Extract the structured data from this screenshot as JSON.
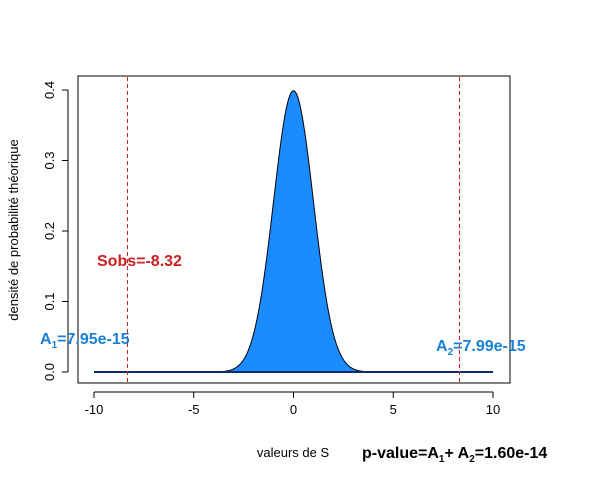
{
  "chart_data": {
    "type": "area",
    "distribution": "standard normal density",
    "xlabel": "valeurs de S",
    "ylabel": "densité de probabilité théorique",
    "xlim": [
      -10,
      10
    ],
    "ylim": [
      0,
      0.4
    ],
    "xticks": [
      -10,
      -5,
      0,
      5,
      10
    ],
    "yticks": [
      0.0,
      0.1,
      0.2,
      0.3,
      0.4
    ],
    "xtick_labels": [
      "-10",
      "-5",
      "0",
      "5",
      "10"
    ],
    "ytick_labels": [
      "0.0",
      "0.1",
      "0.2",
      "0.3",
      "0.4"
    ],
    "x": [
      -10,
      -4,
      -3.5,
      -3,
      -2.5,
      -2,
      -1.5,
      -1,
      -0.5,
      0,
      0.5,
      1,
      1.5,
      2,
      2.5,
      3,
      3.5,
      4,
      10
    ],
    "y": [
      0,
      0.0001,
      0.0009,
      0.0044,
      0.0175,
      0.054,
      0.1295,
      0.242,
      0.3521,
      0.3989,
      0.3521,
      0.242,
      0.1295,
      0.054,
      0.0175,
      0.0044,
      0.0009,
      0.0001,
      0
    ],
    "fill_color": "#1a8cff",
    "reference_lines": [
      {
        "x": -8.32,
        "color": "#cc1f1f",
        "style": "dashed"
      },
      {
        "x": 8.32,
        "color": "#cc1f1f",
        "style": "dashed"
      }
    ],
    "sobs_label": {
      "text": "Sobs=-8.32",
      "color": "#cc1f1f"
    },
    "a1_label": {
      "main": "A",
      "sub": "1",
      "rest": "=7.95e-15",
      "color": "#1a7fd6"
    },
    "a2_label": {
      "main": "A",
      "sub": "2",
      "rest": "=7.99e-15",
      "color": "#1a7fd6"
    },
    "pvalue_label": {
      "prefix": "p-value=A",
      "sub1": "1",
      "mid": "+ A",
      "sub2": "2",
      "rest": "=1.60e-14",
      "color": "#000000"
    }
  }
}
